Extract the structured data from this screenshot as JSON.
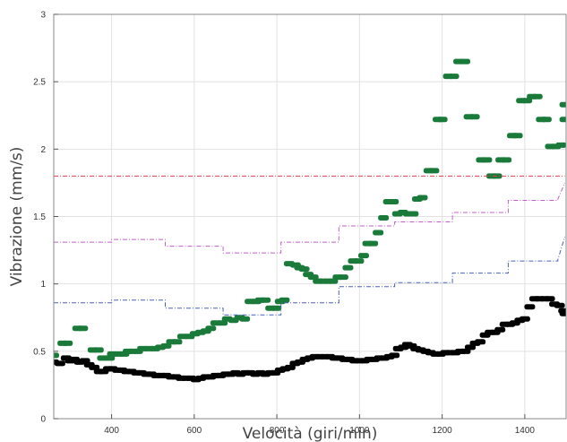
{
  "chart_data": {
    "type": "scatter",
    "xlabel": "Velocità (giri/min)",
    "ylabel": "Vibrazione (mm/s)",
    "xlim": [
      260,
      1500
    ],
    "ylim": [
      0,
      3
    ],
    "xticks": [
      400,
      600,
      800,
      1000,
      1200,
      1400
    ],
    "xtick_labels": [
      "400",
      "600",
      "800",
      "1000",
      "1200",
      "1400"
    ],
    "yticks": [
      0,
      0.5,
      1,
      1.5,
      2,
      2.5,
      3
    ],
    "ytick_labels": [
      "0",
      "0.5",
      "1",
      "1.5",
      "2",
      "2.5",
      "3"
    ],
    "grid": true,
    "series": [
      {
        "kind": "scatter",
        "color": "#1a7a3a",
        "points": [
          [
            260,
            0.47
          ],
          [
            282,
            0.56
          ],
          [
            293,
            0.56
          ],
          [
            318,
            0.67
          ],
          [
            330,
            0.67
          ],
          [
            355,
            0.51
          ],
          [
            368,
            0.51
          ],
          [
            378,
            0.45
          ],
          [
            395,
            0.45
          ],
          [
            402,
            0.48
          ],
          [
            418,
            0.48
          ],
          [
            430,
            0.48
          ],
          [
            440,
            0.5
          ],
          [
            452,
            0.5
          ],
          [
            463,
            0.5
          ],
          [
            475,
            0.52
          ],
          [
            490,
            0.52
          ],
          [
            505,
            0.52
          ],
          [
            518,
            0.53
          ],
          [
            532,
            0.54
          ],
          [
            545,
            0.57
          ],
          [
            558,
            0.57
          ],
          [
            572,
            0.61
          ],
          [
            588,
            0.61
          ],
          [
            602,
            0.63
          ],
          [
            615,
            0.64
          ],
          [
            628,
            0.65
          ],
          [
            640,
            0.67
          ],
          [
            652,
            0.71
          ],
          [
            668,
            0.71
          ],
          [
            680,
            0.74
          ],
          [
            695,
            0.73
          ],
          [
            710,
            0.75
          ],
          [
            722,
            0.74
          ],
          [
            735,
            0.87
          ],
          [
            750,
            0.87
          ],
          [
            760,
            0.88
          ],
          [
            772,
            0.88
          ],
          [
            785,
            0.82
          ],
          [
            798,
            0.82
          ],
          [
            808,
            0.87
          ],
          [
            818,
            0.88
          ],
          [
            830,
            1.15
          ],
          [
            845,
            1.14
          ],
          [
            855,
            1.12
          ],
          [
            866,
            1.11
          ],
          [
            876,
            1.07
          ],
          [
            888,
            1.05
          ],
          [
            900,
            1.02
          ],
          [
            912,
            1.02
          ],
          [
            925,
            1.02
          ],
          [
            935,
            1.02
          ],
          [
            948,
            1.05
          ],
          [
            960,
            1.05
          ],
          [
            972,
            1.12
          ],
          [
            985,
            1.17
          ],
          [
            998,
            1.17
          ],
          [
            1010,
            1.21
          ],
          [
            1020,
            1.3
          ],
          [
            1032,
            1.3
          ],
          [
            1045,
            1.38
          ],
          [
            1058,
            1.49
          ],
          [
            1070,
            1.61
          ],
          [
            1082,
            1.61
          ],
          [
            1092,
            1.52
          ],
          [
            1105,
            1.53
          ],
          [
            1118,
            1.52
          ],
          [
            1130,
            1.52
          ],
          [
            1140,
            1.63
          ],
          [
            1152,
            1.64
          ],
          [
            1168,
            1.84
          ],
          [
            1180,
            1.84
          ],
          [
            1190,
            2.22
          ],
          [
            1200,
            2.22
          ],
          [
            1215,
            2.54
          ],
          [
            1228,
            2.54
          ],
          [
            1240,
            2.65
          ],
          [
            1255,
            2.65
          ],
          [
            1265,
            2.24
          ],
          [
            1278,
            2.24
          ],
          [
            1295,
            1.92
          ],
          [
            1308,
            1.92
          ],
          [
            1320,
            1.8
          ],
          [
            1332,
            1.8
          ],
          [
            1342,
            1.92
          ],
          [
            1355,
            1.92
          ],
          [
            1370,
            2.1
          ],
          [
            1382,
            2.1
          ],
          [
            1392,
            2.36
          ],
          [
            1405,
            2.36
          ],
          [
            1418,
            2.39
          ],
          [
            1430,
            2.39
          ],
          [
            1440,
            2.22
          ],
          [
            1452,
            2.22
          ],
          [
            1462,
            2.02
          ],
          [
            1475,
            2.02
          ],
          [
            1488,
            2.03
          ],
          [
            1497,
            2.22
          ],
          [
            1497,
            2.33
          ]
        ]
      },
      {
        "kind": "scatter",
        "color": "#000000",
        "points": [
          [
            260,
            0.42
          ],
          [
            275,
            0.41
          ],
          [
            290,
            0.45
          ],
          [
            300,
            0.43
          ],
          [
            310,
            0.44
          ],
          [
            322,
            0.42
          ],
          [
            335,
            0.43
          ],
          [
            346,
            0.4
          ],
          [
            358,
            0.38
          ],
          [
            370,
            0.35
          ],
          [
            380,
            0.35
          ],
          [
            392,
            0.37
          ],
          [
            402,
            0.37
          ],
          [
            414,
            0.36
          ],
          [
            425,
            0.36
          ],
          [
            436,
            0.35
          ],
          [
            448,
            0.35
          ],
          [
            460,
            0.34
          ],
          [
            472,
            0.34
          ],
          [
            484,
            0.33
          ],
          [
            496,
            0.33
          ],
          [
            508,
            0.32
          ],
          [
            520,
            0.32
          ],
          [
            532,
            0.32
          ],
          [
            544,
            0.31
          ],
          [
            556,
            0.31
          ],
          [
            568,
            0.3
          ],
          [
            580,
            0.3
          ],
          [
            592,
            0.3
          ],
          [
            604,
            0.29
          ],
          [
            616,
            0.3
          ],
          [
            628,
            0.31
          ],
          [
            640,
            0.31
          ],
          [
            652,
            0.32
          ],
          [
            664,
            0.32
          ],
          [
            676,
            0.33
          ],
          [
            688,
            0.33
          ],
          [
            700,
            0.34
          ],
          [
            712,
            0.33
          ],
          [
            724,
            0.34
          ],
          [
            736,
            0.34
          ],
          [
            748,
            0.33
          ],
          [
            760,
            0.34
          ],
          [
            772,
            0.33
          ],
          [
            784,
            0.34
          ],
          [
            796,
            0.34
          ],
          [
            808,
            0.36
          ],
          [
            820,
            0.37
          ],
          [
            832,
            0.38
          ],
          [
            844,
            0.41
          ],
          [
            856,
            0.42
          ],
          [
            868,
            0.44
          ],
          [
            880,
            0.45
          ],
          [
            892,
            0.46
          ],
          [
            904,
            0.46
          ],
          [
            916,
            0.46
          ],
          [
            928,
            0.46
          ],
          [
            940,
            0.45
          ],
          [
            952,
            0.45
          ],
          [
            964,
            0.44
          ],
          [
            976,
            0.44
          ],
          [
            988,
            0.43
          ],
          [
            1000,
            0.43
          ],
          [
            1012,
            0.43
          ],
          [
            1024,
            0.44
          ],
          [
            1036,
            0.44
          ],
          [
            1048,
            0.45
          ],
          [
            1060,
            0.45
          ],
          [
            1072,
            0.46
          ],
          [
            1084,
            0.47
          ],
          [
            1094,
            0.52
          ],
          [
            1106,
            0.53
          ],
          [
            1116,
            0.55
          ],
          [
            1126,
            0.54
          ],
          [
            1136,
            0.52
          ],
          [
            1148,
            0.51
          ],
          [
            1160,
            0.5
          ],
          [
            1172,
            0.49
          ],
          [
            1184,
            0.48
          ],
          [
            1196,
            0.48
          ],
          [
            1208,
            0.49
          ],
          [
            1220,
            0.49
          ],
          [
            1232,
            0.49
          ],
          [
            1244,
            0.5
          ],
          [
            1256,
            0.5
          ],
          [
            1268,
            0.53
          ],
          [
            1280,
            0.56
          ],
          [
            1292,
            0.57
          ],
          [
            1304,
            0.62
          ],
          [
            1316,
            0.64
          ],
          [
            1328,
            0.64
          ],
          [
            1340,
            0.66
          ],
          [
            1352,
            0.7
          ],
          [
            1364,
            0.7
          ],
          [
            1376,
            0.71
          ],
          [
            1388,
            0.73
          ],
          [
            1400,
            0.74
          ],
          [
            1412,
            0.83
          ],
          [
            1424,
            0.89
          ],
          [
            1436,
            0.89
          ],
          [
            1448,
            0.89
          ],
          [
            1460,
            0.89
          ],
          [
            1472,
            0.85
          ],
          [
            1484,
            0.84
          ],
          [
            1494,
            0.8
          ],
          [
            1497,
            0.78
          ]
        ]
      },
      {
        "kind": "step",
        "color": "#e83c4a",
        "points": [
          [
            260,
            1.8
          ],
          [
            1497,
            1.8
          ]
        ]
      },
      {
        "kind": "step",
        "color": "#c060c8",
        "points": [
          [
            260,
            1.31
          ],
          [
            400,
            1.31
          ],
          [
            400,
            1.33
          ],
          [
            530,
            1.33
          ],
          [
            530,
            1.28
          ],
          [
            670,
            1.28
          ],
          [
            670,
            1.23
          ],
          [
            810,
            1.23
          ],
          [
            810,
            1.31
          ],
          [
            950,
            1.31
          ],
          [
            950,
            1.43
          ],
          [
            1085,
            1.43
          ],
          [
            1085,
            1.46
          ],
          [
            1225,
            1.46
          ],
          [
            1225,
            1.53
          ],
          [
            1360,
            1.53
          ],
          [
            1360,
            1.62
          ],
          [
            1480,
            1.62
          ],
          [
            1480,
            1.63
          ],
          [
            1497,
            1.75
          ]
        ]
      },
      {
        "kind": "step",
        "color": "#4a62b8",
        "points": [
          [
            260,
            0.86
          ],
          [
            400,
            0.86
          ],
          [
            400,
            0.88
          ],
          [
            530,
            0.88
          ],
          [
            530,
            0.82
          ],
          [
            670,
            0.82
          ],
          [
            670,
            0.77
          ],
          [
            810,
            0.77
          ],
          [
            810,
            0.86
          ],
          [
            950,
            0.86
          ],
          [
            950,
            0.98
          ],
          [
            1085,
            0.98
          ],
          [
            1085,
            1.01
          ],
          [
            1225,
            1.01
          ],
          [
            1225,
            1.08
          ],
          [
            1360,
            1.08
          ],
          [
            1360,
            1.17
          ],
          [
            1480,
            1.17
          ],
          [
            1480,
            1.18
          ],
          [
            1497,
            1.35
          ]
        ]
      }
    ]
  }
}
